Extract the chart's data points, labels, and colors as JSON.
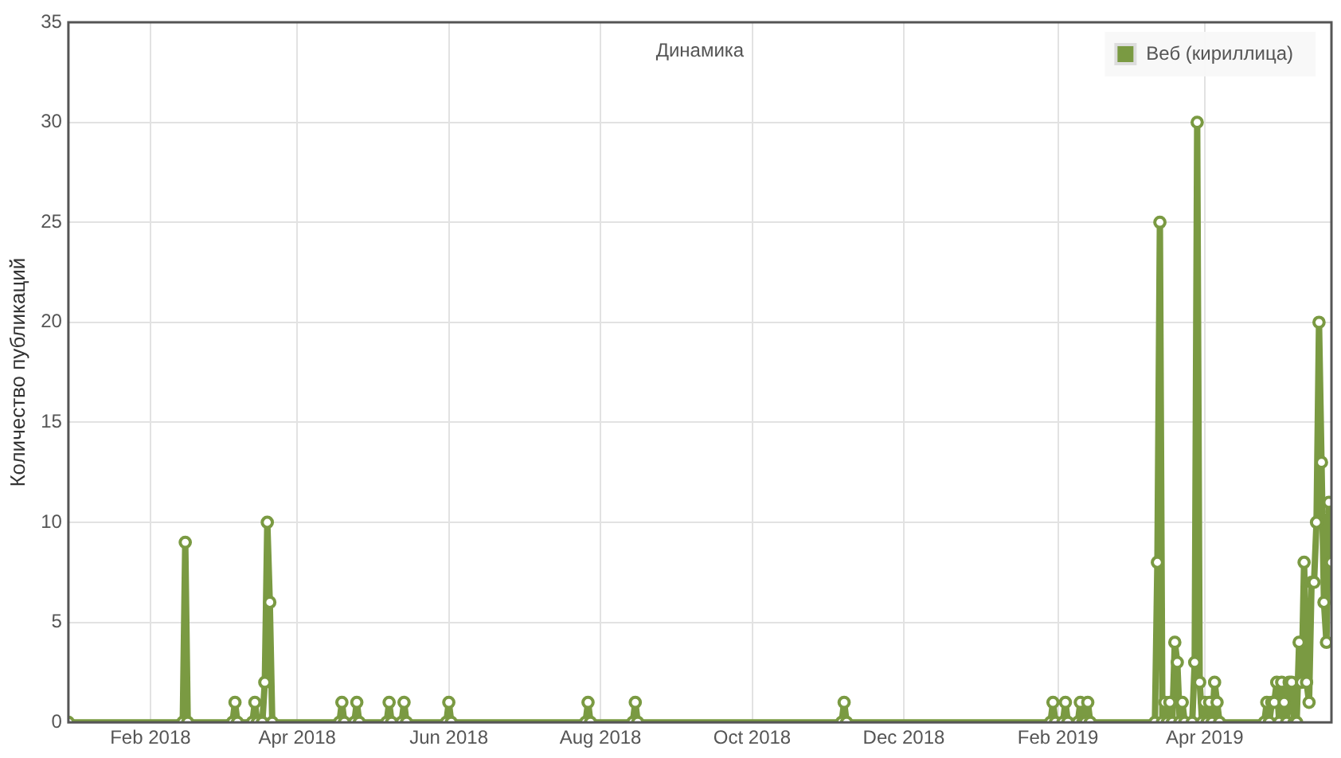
{
  "chart_data": {
    "type": "line",
    "title": "Динамика",
    "ylabel": "Количество публикаций",
    "x": [
      "2017-12-30",
      "2018-02-14",
      "2018-02-15",
      "2018-02-16",
      "2018-03-06",
      "2018-03-07",
      "2018-03-08",
      "2018-03-14",
      "2018-03-15",
      "2018-03-16",
      "2018-03-18",
      "2018-03-19",
      "2018-03-20",
      "2018-03-21",
      "2018-03-22",
      "2018-04-18",
      "2018-04-19",
      "2018-04-20",
      "2018-04-24",
      "2018-04-25",
      "2018-04-26",
      "2018-05-07",
      "2018-05-08",
      "2018-05-09",
      "2018-05-13",
      "2018-05-14",
      "2018-05-15",
      "2018-05-31",
      "2018-06-01",
      "2018-06-02",
      "2018-07-26",
      "2018-07-27",
      "2018-07-28",
      "2018-08-14",
      "2018-08-15",
      "2018-08-16",
      "2018-11-06",
      "2018-11-07",
      "2018-11-08",
      "2019-01-29",
      "2019-01-30",
      "2019-01-31",
      "2019-02-03",
      "2019-02-04",
      "2019-02-05",
      "2019-02-09",
      "2019-02-10",
      "2019-02-11",
      "2019-02-12",
      "2019-02-13",
      "2019-02-14",
      "2019-03-12",
      "2019-03-13",
      "2019-03-14",
      "2019-03-15",
      "2019-03-16",
      "2019-03-17",
      "2019-03-18",
      "2019-03-19",
      "2019-03-20",
      "2019-03-21",
      "2019-03-22",
      "2019-03-23",
      "2019-03-24",
      "2019-03-27",
      "2019-03-28",
      "2019-03-29",
      "2019-03-30",
      "2019-03-31",
      "2019-04-01",
      "2019-04-02",
      "2019-04-03",
      "2019-04-04",
      "2019-04-05",
      "2019-04-06",
      "2019-04-07",
      "2019-04-25",
      "2019-04-26",
      "2019-04-27",
      "2019-04-28",
      "2019-04-29",
      "2019-04-30",
      "2019-05-01",
      "2019-05-02",
      "2019-05-03",
      "2019-05-04",
      "2019-05-05",
      "2019-05-06",
      "2019-05-07",
      "2019-05-08",
      "2019-05-09",
      "2019-05-10",
      "2019-05-11",
      "2019-05-12",
      "2019-05-13",
      "2019-05-14",
      "2019-05-15",
      "2019-05-16",
      "2019-05-17",
      "2019-05-18",
      "2019-05-19",
      "2019-05-20",
      "2019-05-21",
      "2019-05-22"
    ],
    "series": [
      {
        "name": "Веб (кириллица)",
        "color": "#7a9a42",
        "values": [
          0,
          0,
          9,
          0,
          0,
          1,
          0,
          0,
          1,
          0,
          0,
          2,
          10,
          6,
          0,
          0,
          1,
          0,
          0,
          1,
          0,
          0,
          1,
          0,
          0,
          1,
          0,
          0,
          1,
          0,
          0,
          1,
          0,
          0,
          1,
          0,
          0,
          1,
          0,
          0,
          1,
          0,
          0,
          1,
          0,
          0,
          1,
          0,
          0,
          1,
          0,
          0,
          8,
          25,
          0,
          1,
          0,
          1,
          0,
          4,
          3,
          0,
          1,
          0,
          0,
          3,
          30,
          2,
          0,
          1,
          0,
          1,
          0,
          2,
          1,
          0,
          0,
          1,
          0,
          1,
          1,
          2,
          0,
          2,
          1,
          0,
          2,
          2,
          0,
          0,
          4,
          2,
          8,
          2,
          1,
          7,
          7,
          10,
          20,
          13,
          6,
          4,
          11,
          8
        ]
      }
    ],
    "xlim": [
      "2017-12-30",
      "2019-05-22"
    ],
    "xticks": [
      {
        "value": "2018-02-01",
        "label": "Feb 2018"
      },
      {
        "value": "2018-04-01",
        "label": "Apr 2018"
      },
      {
        "value": "2018-06-01",
        "label": "Jun 2018"
      },
      {
        "value": "2018-08-01",
        "label": "Aug 2018"
      },
      {
        "value": "2018-10-01",
        "label": "Oct 2018"
      },
      {
        "value": "2018-12-01",
        "label": "Dec 2018"
      },
      {
        "value": "2019-02-01",
        "label": "Feb 2019"
      },
      {
        "value": "2019-04-01",
        "label": "Apr 2019"
      }
    ],
    "ylim": [
      0,
      35
    ],
    "yticks": [
      0,
      5,
      10,
      15,
      20,
      25,
      30,
      35
    ],
    "grid": true,
    "legend": "top right",
    "marker": "circle",
    "line_style": "solid"
  }
}
